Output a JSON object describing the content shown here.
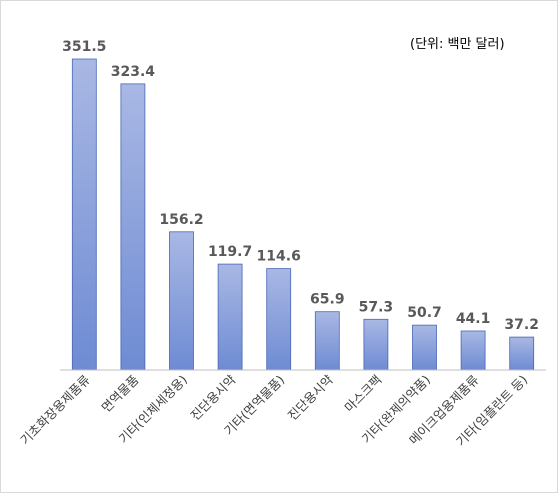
{
  "chart_data": {
    "type": "bar",
    "unit_note": "(단위: 백만 달러)",
    "categories": [
      "기초화장용제품류",
      "면역물품",
      "기타(인체세정용)",
      "진단용시약",
      "기타(면역물품)",
      "진단용시약",
      "마스크팩",
      "기타(완제의약품)",
      "메이크업용제품류",
      "기타(임플란트 등)"
    ],
    "values": [
      351.5,
      323.4,
      156.2,
      119.7,
      114.6,
      65.9,
      57.3,
      50.7,
      44.1,
      37.2
    ],
    "value_labels": [
      "351.5",
      "323.4",
      "156.2",
      "119.7",
      "114.6",
      "65.9",
      "57.3",
      "50.7",
      "44.1",
      "37.2"
    ],
    "ylim": [
      0,
      351.5
    ],
    "grid": false,
    "legend": "none",
    "colors": {
      "bar_top": "#a9b8e4",
      "bar_bottom": "#6e8bd3",
      "bar_edge": "#4a67b6",
      "axis": "#bfbfbf",
      "value_label": "#595959",
      "tick_label": "#404040"
    }
  }
}
